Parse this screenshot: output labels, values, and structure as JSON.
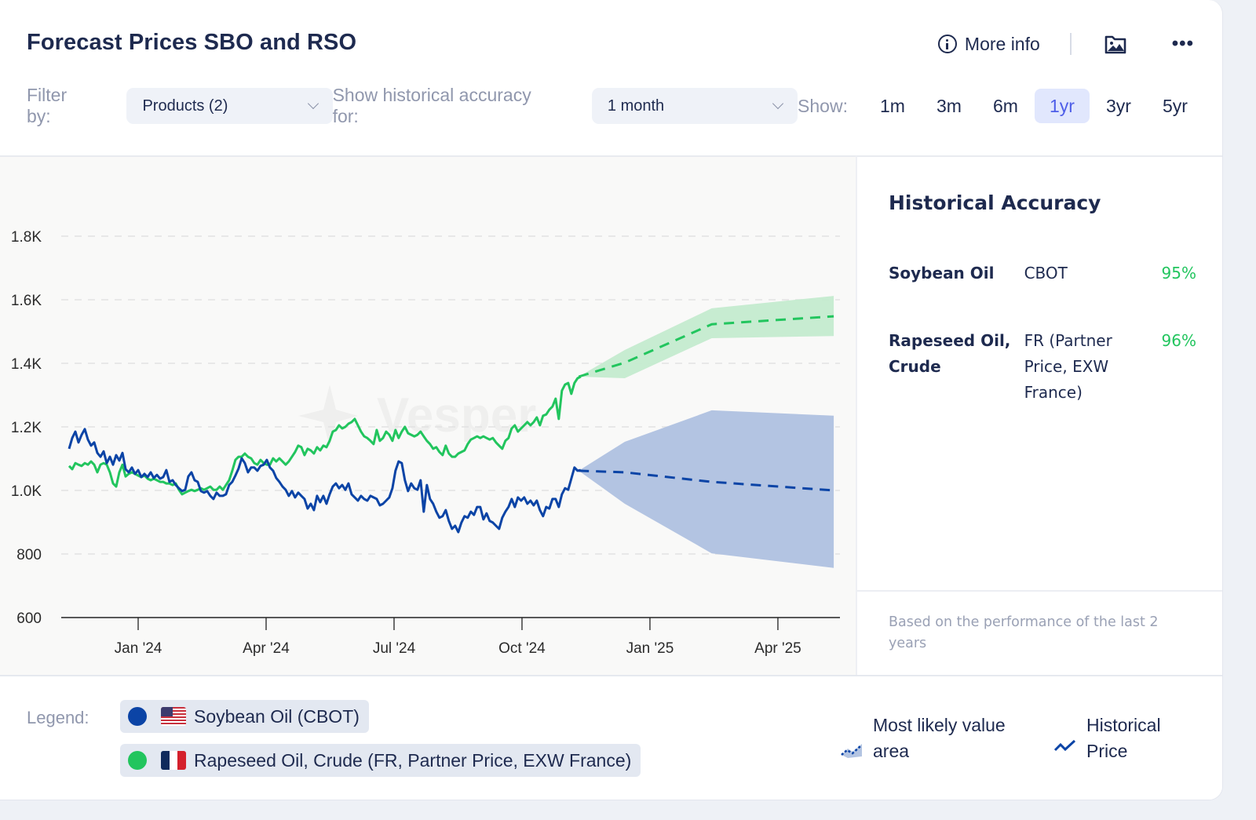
{
  "header": {
    "title": "Forecast Prices SBO and RSO",
    "more_info_label": "More info",
    "image_icon": "image-export-icon",
    "menu_icon": "more-dots-icon"
  },
  "filters": {
    "filter_by_label": "Filter by:",
    "products_value": "Products (2)",
    "accuracy_label": "Show historical accuracy for:",
    "accuracy_value": "1 month",
    "show_label": "Show:",
    "ranges": [
      "1m",
      "3m",
      "6m",
      "1yr",
      "3yr",
      "5yr"
    ],
    "active_range": "1yr"
  },
  "accuracy_panel": {
    "title": "Historical Accuracy",
    "rows": [
      {
        "product": "Soybean Oil",
        "source": "CBOT",
        "accuracy": "95%"
      },
      {
        "product": "Rapeseed Oil, Crude",
        "source": "FR (Partner Price, EXW France)",
        "accuracy": "96%"
      }
    ],
    "footnote": "Based on the performance of the last 2 years"
  },
  "legend": {
    "label": "Legend:",
    "series": [
      {
        "name": "Soybean Oil (CBOT)",
        "color": "#0b44a6",
        "flag": "us-flag-icon"
      },
      {
        "name": "Rapeseed Oil, Crude (FR, Partner Price, EXW France)",
        "color": "#22c55e",
        "flag": "fr-flag-icon"
      }
    ],
    "keys": [
      {
        "label": "Most likely value area",
        "icon": "forecast-area-icon"
      },
      {
        "label": "Historical Price",
        "icon": "historical-line-icon"
      }
    ]
  },
  "colors": {
    "sbo": "#0b44a6",
    "rso": "#22c55e",
    "sbo_band": "#b3c4e2",
    "rso_band": "#c4ebcf",
    "accent": "#4e5ee8",
    "accuracy_good": "#22c55e"
  },
  "chart_data": {
    "type": "line",
    "title": "Forecast Prices SBO and RSO",
    "watermark": "Vesper",
    "xlabel": "",
    "ylabel": "",
    "x_unit": "months since Jan 2024",
    "x_range": [
      -1.62,
      16.31
    ],
    "ylim": [
      600,
      1900
    ],
    "y_ticks": [
      600,
      800,
      1000,
      1200,
      1400,
      1600,
      1800
    ],
    "y_tick_labels": [
      "600",
      "800",
      "1.0K",
      "1.2K",
      "1.4K",
      "1.6K",
      "1.8K"
    ],
    "x_ticks": [
      0,
      3,
      6,
      9,
      12,
      15
    ],
    "x_tick_labels": [
      "Jan '24",
      "Apr '24",
      "Jul '24",
      "Oct '24",
      "Jan '25",
      "Apr '25"
    ],
    "grid": "horizontal-dashed",
    "legend_position": "bottom",
    "historical_x_start": -1.62,
    "historical_x_step": 0.0736,
    "series": [
      {
        "name": "Soybean Oil (CBOT)",
        "color": "#0b44a6",
        "historical": [
          1131,
          1165,
          1185,
          1151,
          1175,
          1193,
          1160,
          1141,
          1151,
          1118,
          1106,
          1123,
          1086,
          1106,
          1081,
          1111,
          1094,
          1118,
          1067,
          1057,
          1072,
          1052,
          1064,
          1042,
          1052,
          1042,
          1057,
          1039,
          1049,
          1037,
          1042,
          1064,
          1027,
          1032,
          1017,
          1007,
          998,
          1002,
          1044,
          1057,
          1032,
          1027,
          998,
          993,
          998,
          983,
          973,
          993,
          983,
          983,
          988,
          1017,
          1027,
          1047,
          1069,
          1101,
          1086,
          1057,
          1072,
          1072,
          1062,
          1077,
          1081,
          1096,
          1072,
          1062,
          1039,
          1027,
          1012,
          1002,
          983,
          998,
          978,
          993,
          983,
          973,
          943,
          958,
          938,
          983,
          963,
          983,
          958,
          988,
          1012,
          1022,
          1007,
          1017,
          1002,
          1022,
          988,
          978,
          968,
          983,
          973,
          968,
          983,
          978,
          973,
          953,
          958,
          968,
          978,
          1007,
          1062,
          1091,
          1086,
          1032,
          998,
          1022,
          1007,
          1002,
          1032,
          933,
          1017,
          973,
          958,
          933,
          914,
          919,
          938,
          904,
          879,
          889,
          869,
          899,
          919,
          914,
          933,
          923,
          948,
          948,
          909,
          928,
          904,
          899,
          889,
          879,
          914,
          933,
          948,
          973,
          948,
          978,
          968,
          978,
          958,
          968,
          953,
          968,
          938,
          919,
          948,
          943,
          973,
          973,
          948,
          988,
          1007,
          1002,
          1037,
          1072,
          1062,
          1064
        ],
        "forecast": {
          "x": [
            10.33,
            11.41,
            13.45,
            16.31
          ],
          "most_likely": [
            1062,
            1057,
            1027,
            1000
          ],
          "upper": [
            1062,
            1153,
            1252,
            1235
          ],
          "lower": [
            1062,
            958,
            802,
            756
          ]
        }
      },
      {
        "name": "Rapeseed Oil, Crude (FR, Partner Price, EXW France)",
        "color": "#22c55e",
        "historical": [
          1077,
          1067,
          1086,
          1081,
          1077,
          1086,
          1081,
          1091,
          1081,
          1057,
          1081,
          1086,
          1081,
          1057,
          1022,
          1012,
          1057,
          1081,
          1044,
          1052,
          1057,
          1052,
          1047,
          1042,
          1047,
          1037,
          1032,
          1037,
          1032,
          1027,
          1027,
          1022,
          1022,
          1017,
          1022,
          1002,
          988,
          993,
          998,
          1002,
          998,
          1002,
          1007,
          1002,
          1007,
          1012,
          1002,
          1002,
          1012,
          1002,
          1017,
          1032,
          1062,
          1096,
          1106,
          1106,
          1116,
          1106,
          1101,
          1086,
          1081,
          1096,
          1086,
          1081,
          1081,
          1101,
          1091,
          1101,
          1091,
          1081,
          1091,
          1106,
          1121,
          1141,
          1136,
          1111,
          1131,
          1126,
          1116,
          1136,
          1126,
          1141,
          1136,
          1156,
          1185,
          1190,
          1205,
          1195,
          1200,
          1210,
          1215,
          1225,
          1205,
          1185,
          1170,
          1165,
          1156,
          1146,
          1190,
          1156,
          1165,
          1185,
          1175,
          1156,
          1190,
          1165,
          1185,
          1200,
          1180,
          1175,
          1170,
          1175,
          1185,
          1170,
          1156,
          1146,
          1131,
          1136,
          1121,
          1111,
          1141,
          1116,
          1106,
          1106,
          1116,
          1121,
          1126,
          1146,
          1160,
          1165,
          1170,
          1165,
          1170,
          1165,
          1160,
          1165,
          1151,
          1141,
          1131,
          1156,
          1165,
          1195,
          1205,
          1185,
          1195,
          1205,
          1215,
          1205,
          1215,
          1230,
          1205,
          1235,
          1239,
          1254,
          1264,
          1289,
          1225,
          1314,
          1333,
          1338,
          1304,
          1338,
          1353,
          1358
        ],
        "forecast": {
          "x": [
            10.33,
            11.41,
            13.45,
            16.31
          ],
          "most_likely": [
            1358,
            1402,
            1523,
            1548
          ],
          "upper": [
            1358,
            1442,
            1573,
            1612
          ],
          "lower": [
            1358,
            1353,
            1479,
            1486
          ]
        }
      }
    ]
  }
}
